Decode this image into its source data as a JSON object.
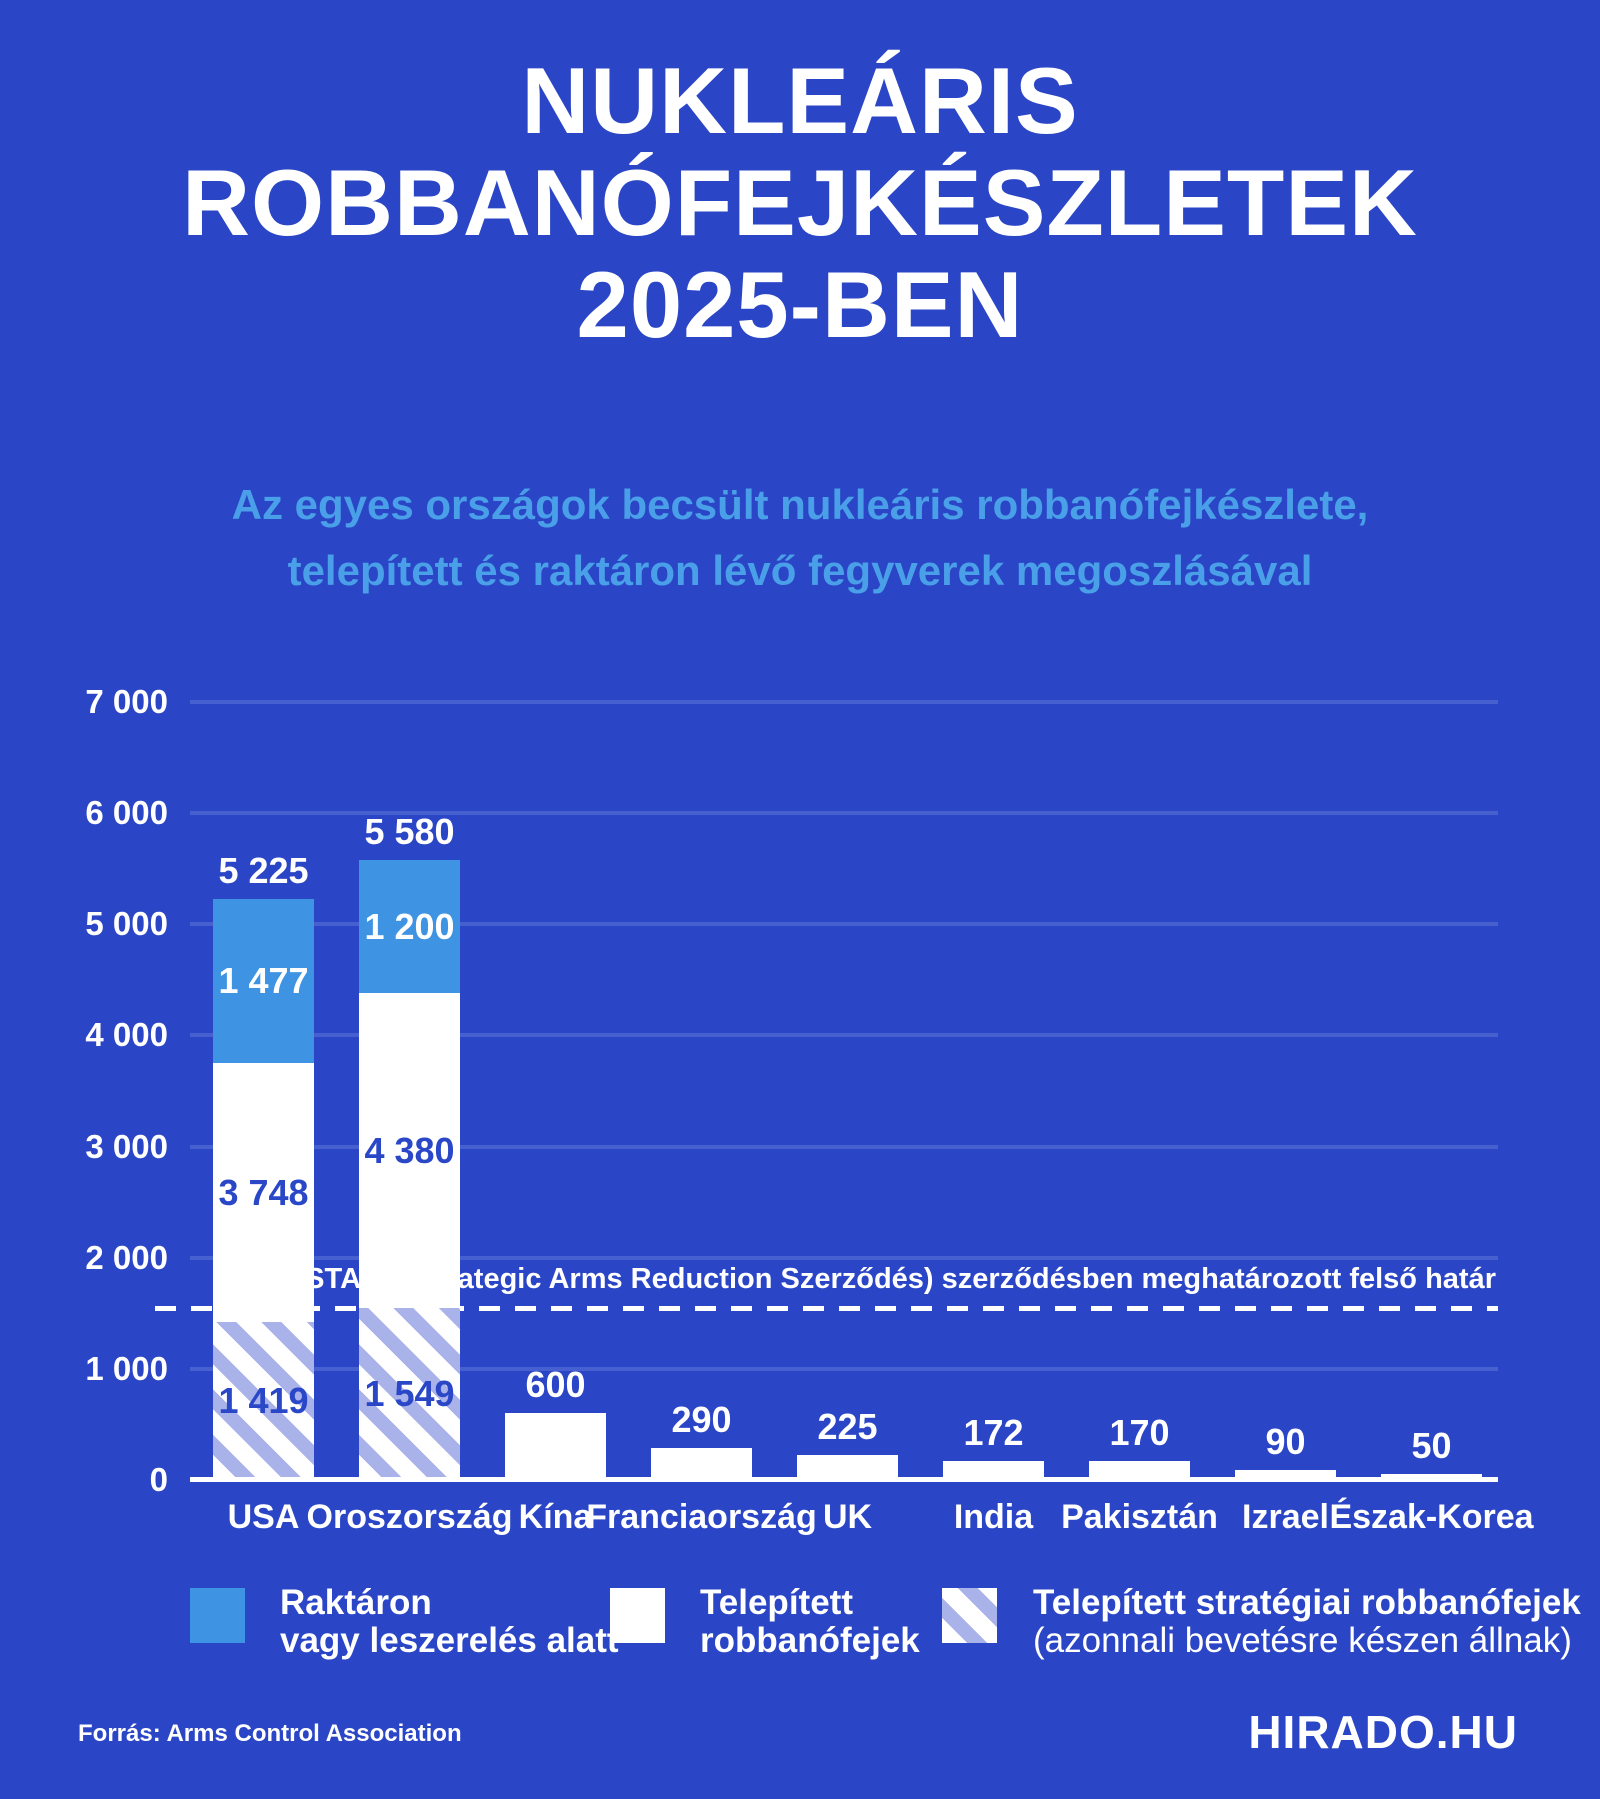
{
  "title": {
    "lines": [
      "NUKLEÁRIS",
      "ROBBANÓFEJKÉSZLETEK",
      "2025-BEN"
    ]
  },
  "subtitle": {
    "lines": [
      "Az egyes országok becsült nukleáris robbanófejkészlete,",
      "telepített és raktáron lévő fegyverek megoszlásával"
    ]
  },
  "colors": {
    "background": "#2a45c6",
    "stored_blue": "#3e93e2",
    "subtitle_blue": "#4aa0e8",
    "hatch_stripe": "#a9b3ea",
    "dark_blue_text": "#2a47c8",
    "gridline": "#4661cf",
    "white": "#ffffff"
  },
  "chart_data": {
    "type": "bar",
    "subtype": "stacked",
    "ylim": [
      0,
      7000
    ],
    "grid": true,
    "yticks": [
      {
        "value": 7000,
        "label": "7 000"
      },
      {
        "value": 6000,
        "label": "6 000"
      },
      {
        "value": 5000,
        "label": "5 000"
      },
      {
        "value": 4000,
        "label": "4 000"
      },
      {
        "value": 3000,
        "label": "3 000"
      },
      {
        "value": 2000,
        "label": "2 000"
      },
      {
        "value": 1000,
        "label": "1 000"
      },
      {
        "value": 0,
        "label": "0"
      }
    ],
    "series_legend": [
      "Raktáron vagy leszerelés alatt",
      "Telepített robbanófejek",
      "Telepített stratégiai robbanófejek (azonnali bevetésre készen állnak)"
    ],
    "categories": [
      "USA",
      "Oroszország",
      "Kína",
      "Franciaország",
      "UK",
      "India",
      "Pakisztán",
      "Izrael",
      "Észak-Korea"
    ],
    "countries": [
      {
        "id": "usa",
        "name": "USA",
        "total": 5225,
        "total_label": "5 225",
        "stored": 1477,
        "stored_label": "1 477",
        "deployed": 3748,
        "deployed_label": "3 748",
        "strategic": 1419,
        "strategic_label": "1 419"
      },
      {
        "id": "oroszorszag",
        "name": "Oroszország",
        "total": 5580,
        "total_label": "5 580",
        "stored": 1200,
        "stored_label": "1 200",
        "deployed": 4380,
        "deployed_label": "4 380",
        "strategic": 1549,
        "strategic_label": "1 549"
      },
      {
        "id": "kina",
        "name": "Kína",
        "total": 600,
        "total_label": "600"
      },
      {
        "id": "franciaorszag",
        "name": "Franciaország",
        "total": 290,
        "total_label": "290"
      },
      {
        "id": "uk",
        "name": "UK",
        "total": 225,
        "total_label": "225"
      },
      {
        "id": "india",
        "name": "India",
        "total": 172,
        "total_label": "172"
      },
      {
        "id": "pakisztan",
        "name": "Pakisztán",
        "total": 170,
        "total_label": "170"
      },
      {
        "id": "izrael",
        "name": "Izrael",
        "total": 90,
        "total_label": "90"
      },
      {
        "id": "eszak-korea",
        "name": "Észak-Korea",
        "total": 50,
        "total_label": "50"
      }
    ],
    "reference_line": {
      "value": 1550,
      "label": "Új START (Strategic Arms Reduction Szerződés) szerződésben meghatározott felső határ"
    }
  },
  "legend": {
    "items": [
      {
        "id": "stored",
        "lines": [
          "Raktáron",
          "vagy leszerelés alatt"
        ]
      },
      {
        "id": "deployed",
        "lines": [
          "Telepített",
          "robbanófejek"
        ]
      },
      {
        "id": "strategic",
        "lines": [
          "Telepített stratégiai robbanófejek",
          "(azonnali bevetésre készen állnak)"
        ]
      }
    ]
  },
  "footer": {
    "source": "Forrás: Arms Control Association",
    "brand": "HIRADO.HU"
  }
}
